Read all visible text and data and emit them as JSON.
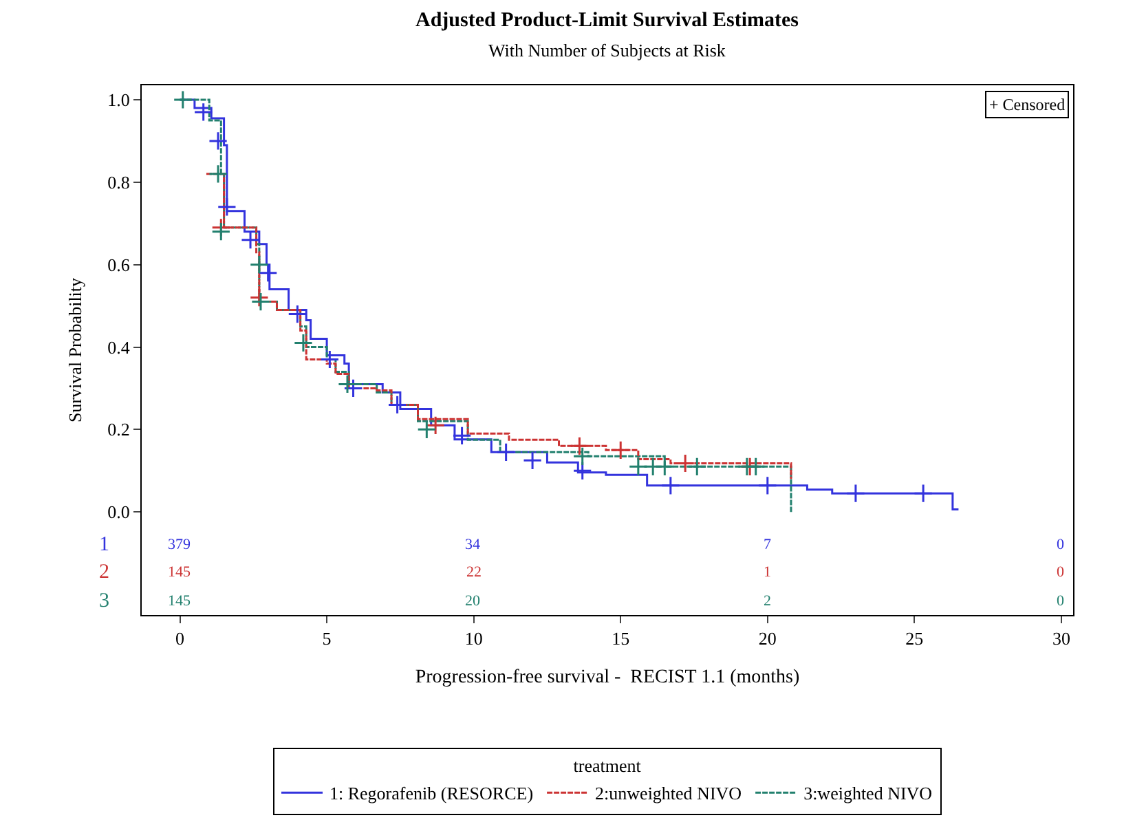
{
  "chart_data": {
    "type": "step",
    "title": "Adjusted Product-Limit Survival Estimates",
    "subtitle": "With Number of Subjects at Risk",
    "xlabel": "Progression-free survival -  RECIST 1.1 (months)",
    "ylabel": "Survival Probability",
    "legend_title": "treatment",
    "xlim": [
      -1.3,
      30.4
    ],
    "xticks": [
      0,
      5,
      10,
      15,
      20,
      25,
      30
    ],
    "ylim": [
      -0.25,
      1.035
    ],
    "yticks": [
      {
        "value": 0,
        "label": "0.0"
      },
      {
        "value": 0.2,
        "label": "0.2"
      },
      {
        "value": 0.4,
        "label": "0.4"
      },
      {
        "value": 0.6,
        "label": "0.6"
      },
      {
        "value": 0.8,
        "label": "0.8"
      },
      {
        "value": 1,
        "label": "1.0"
      }
    ],
    "legend": "bottom",
    "series": [
      {
        "name": "1: Regorafenib (RESORCE)",
        "color": "#3333dd",
        "line_style": "solid",
        "x": [
          0,
          0.5,
          1.07,
          1.5,
          1.6,
          2.2,
          2.7,
          2.95,
          3.05,
          3.7,
          4.3,
          4.45,
          5.0,
          5.6,
          5.75,
          6.9,
          7.5,
          8.55,
          9.35,
          10.6,
          12.5,
          13.55,
          14.5,
          15.9,
          21.35,
          22.2,
          26.3,
          26.5
        ],
        "values": [
          1.0,
          0.98,
          0.955,
          0.89,
          0.73,
          0.68,
          0.65,
          0.6,
          0.54,
          0.49,
          0.465,
          0.42,
          0.38,
          0.36,
          0.31,
          0.29,
          0.25,
          0.21,
          0.176,
          0.145,
          0.12,
          0.096,
          0.09,
          0.064,
          0.054,
          0.045,
          0.006,
          0.006
        ]
      },
      {
        "name": "2:unweighted NIVO",
        "color": "#cc3333",
        "line_style": "dashed",
        "x": [
          0.9,
          1.5,
          2.6,
          2.7,
          3.3,
          4.1,
          4.3,
          5.0,
          5.3,
          5.75,
          6.7,
          7.2,
          8.1,
          9.8,
          11.2,
          12.9,
          14.5,
          15.6,
          16.7,
          20.8,
          20.8
        ],
        "values": [
          0.82,
          0.69,
          0.63,
          0.51,
          0.49,
          0.44,
          0.37,
          0.36,
          0.335,
          0.3,
          0.295,
          0.26,
          0.225,
          0.19,
          0.175,
          0.16,
          0.15,
          0.128,
          0.118,
          0.11,
          0.08
        ]
      },
      {
        "name": "3:weighted NIVO",
        "color": "#22806e",
        "line_style": "dashed",
        "x": [
          0,
          1.0,
          1.4,
          1.5,
          2.6,
          2.7,
          3.3,
          4.1,
          4.3,
          5.0,
          5.3,
          5.75,
          6.7,
          7.2,
          8.1,
          9.8,
          10.9,
          13.9,
          16.5,
          20.8,
          20.8
        ],
        "values": [
          1.0,
          0.95,
          0.82,
          0.69,
          0.65,
          0.51,
          0.49,
          0.45,
          0.4,
          0.37,
          0.34,
          0.31,
          0.29,
          0.26,
          0.22,
          0.175,
          0.145,
          0.135,
          0.11,
          0.11,
          0.0
        ]
      },
      {
        "type": "scatter",
        "color": "#3333dd",
        "marker": "cross",
        "x": [
          0.8,
          1.3,
          1.6,
          2.4,
          3.0,
          4.0,
          5.1,
          5.9,
          7.4,
          9.6,
          11.1,
          12.0,
          13.7,
          16.7,
          20.0,
          23.0,
          25.3
        ],
        "values": [
          0.97,
          0.9,
          0.74,
          0.66,
          0.58,
          0.48,
          0.37,
          0.3,
          0.26,
          0.185,
          0.145,
          0.125,
          0.1,
          0.064,
          0.064,
          0.045,
          0.045
        ]
      },
      {
        "type": "scatter",
        "color": "#cc3333",
        "marker": "cross",
        "x": [
          1.4,
          2.7,
          8.7,
          13.6,
          15.0,
          17.2,
          19.4
        ],
        "values": [
          0.69,
          0.52,
          0.21,
          0.16,
          0.15,
          0.118,
          0.11
        ]
      },
      {
        "type": "scatter",
        "color": "#22806e",
        "marker": "cross",
        "x": [
          0.1,
          1.3,
          1.4,
          2.7,
          2.75,
          4.2,
          5.7,
          8.4,
          13.7,
          15.6,
          16.1,
          16.5,
          17.6,
          19.3,
          19.6
        ],
        "values": [
          1.0,
          0.82,
          0.68,
          0.6,
          0.51,
          0.41,
          0.31,
          0.2,
          0.135,
          0.11,
          0.11,
          0.11,
          0.11,
          0.11,
          0.11
        ]
      }
    ],
    "annotations": [
      "+ Censored",
      "1",
      "2",
      "3",
      "379",
      "34",
      "7",
      "0",
      "145",
      "22",
      "1",
      "0",
      "145",
      "20",
      "2",
      "0"
    ]
  }
}
